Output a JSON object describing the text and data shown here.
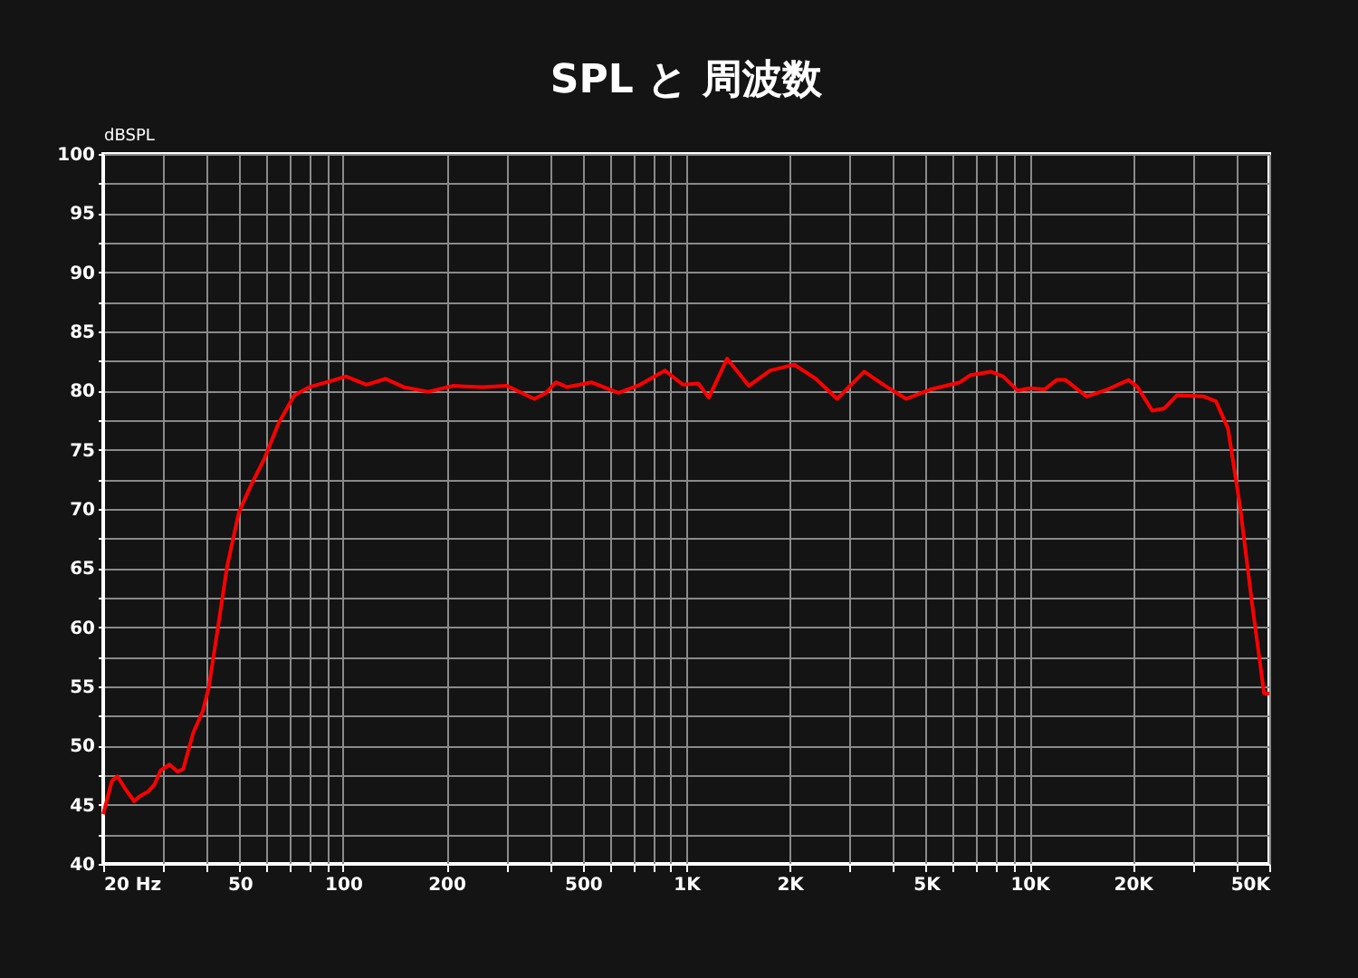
{
  "chart_data": {
    "type": "line",
    "title": "SPL と 周波数",
    "ylabel": "dBSPL",
    "log": "x",
    "grid": true,
    "marker": "none",
    "line_style": "solid",
    "xlim": [
      20,
      50000
    ],
    "ylim": [
      40,
      100
    ],
    "xticks": [
      {
        "value": 20,
        "label": "20  Hz"
      },
      {
        "value": 30,
        "label": null
      },
      {
        "value": 40,
        "label": null
      },
      50,
      {
        "value": 60,
        "label": null
      },
      {
        "value": 70,
        "label": null
      },
      {
        "value": 80,
        "label": null
      },
      {
        "value": 90,
        "label": null
      },
      100,
      200,
      {
        "value": 300,
        "label": null
      },
      {
        "value": 400,
        "label": null
      },
      500,
      {
        "value": 600,
        "label": null
      },
      {
        "value": 700,
        "label": null
      },
      {
        "value": 800,
        "label": null
      },
      {
        "value": 900,
        "label": null
      },
      {
        "value": 1000,
        "label": "1K"
      },
      {
        "value": 2000,
        "label": "2K"
      },
      {
        "value": 3000,
        "label": null
      },
      {
        "value": 4000,
        "label": null
      },
      {
        "value": 5000,
        "label": "5K"
      },
      {
        "value": 6000,
        "label": null
      },
      {
        "value": 7000,
        "label": null
      },
      {
        "value": 8000,
        "label": null
      },
      {
        "value": 9000,
        "label": null
      },
      {
        "value": 10000,
        "label": "10K"
      },
      {
        "value": 20000,
        "label": "20K"
      },
      {
        "value": 30000,
        "label": null
      },
      {
        "value": 40000,
        "label": null
      },
      {
        "value": 50000,
        "label": "50K"
      }
    ],
    "yticks": [
      40,
      {
        "value": 42.5,
        "label": null
      },
      45,
      {
        "value": 47.5,
        "label": null
      },
      50,
      {
        "value": 52.5,
        "label": null
      },
      55,
      {
        "value": 57.5,
        "label": null
      },
      60,
      {
        "value": 62.5,
        "label": null
      },
      65,
      {
        "value": 67.5,
        "label": null
      },
      70,
      {
        "value": 72.5,
        "label": null
      },
      75,
      {
        "value": 77.5,
        "label": null
      },
      80,
      {
        "value": 82.5,
        "label": null
      },
      85,
      {
        "value": 87.5,
        "label": null
      },
      90,
      {
        "value": 92.5,
        "label": null
      },
      95,
      {
        "value": 97.5,
        "label": null
      },
      100
    ],
    "series": [
      {
        "color": "#ff0000",
        "x": [
          20,
          21.2,
          22,
          23,
          24.6,
          25.5,
          27,
          28.2,
          29.4,
          31.2,
          32.9,
          34.2,
          36.6,
          39,
          40.6,
          43.2,
          45.9,
          49.7,
          53.9,
          59.1,
          65,
          72.1,
          79.7,
          91.9,
          102,
          117,
          133,
          150,
          177,
          209,
          255,
          300,
          361,
          390,
          417,
          449,
          529,
          635,
          734,
          866,
          978,
          1085,
          1163,
          1315,
          1522,
          1756,
          2064,
          2385,
          2752,
          3300,
          3800,
          4376,
          5150,
          6270,
          6720,
          7720,
          8380,
          9250,
          10030,
          11080,
          12000,
          12750,
          14680,
          16880,
          19450,
          20650,
          22800,
          24740,
          26870,
          32240,
          34960,
          37900,
          41100,
          44550,
          48300,
          50000
        ],
        "values": [
          44.2,
          47.0,
          47.4,
          46.5,
          45.3,
          45.7,
          46.1,
          46.7,
          47.9,
          48.4,
          47.8,
          48.0,
          51.1,
          52.9,
          54.9,
          60.0,
          65.1,
          69.7,
          72.0,
          74.3,
          77.3,
          79.6,
          80.3,
          80.8,
          81.2,
          80.5,
          81.0,
          80.3,
          79.9,
          80.4,
          80.3,
          80.4,
          79.3,
          79.8,
          80.7,
          80.3,
          80.7,
          79.8,
          80.5,
          81.7,
          80.5,
          80.6,
          79.4,
          82.7,
          80.4,
          81.7,
          82.2,
          81.0,
          79.3,
          81.6,
          80.4,
          79.3,
          80.1,
          80.7,
          81.3,
          81.6,
          81.2,
          80.0,
          80.2,
          80.1,
          80.9,
          80.9,
          79.5,
          80.1,
          80.9,
          80.3,
          78.3,
          78.5,
          79.6,
          79.5,
          79.1,
          76.8,
          70.2,
          62.0,
          54.4,
          54.4
        ]
      }
    ]
  }
}
